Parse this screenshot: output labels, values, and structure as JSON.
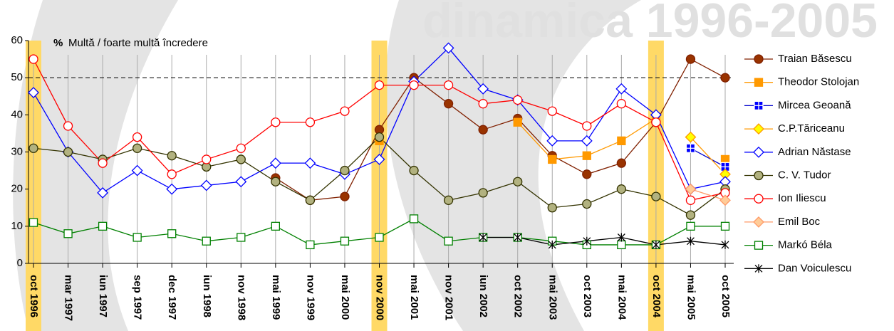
{
  "chart_data": {
    "type": "line",
    "title": "Multă / foarte multă încredere",
    "y_unit": "%",
    "watermark": "dinamica 1996-2005",
    "categories": [
      "oct 1996",
      "mar 1997",
      "iun 1997",
      "sep 1997",
      "dec 1997",
      "iun 1998",
      "nov 1998",
      "mai 1999",
      "nov 1999",
      "mai 2000",
      "nov 2000",
      "mai 2001",
      "nov 2001",
      "iun 2002",
      "oct 2002",
      "mai 2003",
      "oct 2003",
      "mai 2004",
      "oct 2004",
      "mai 2005",
      "oct 2005"
    ],
    "highlight_indices": [
      0,
      10,
      18
    ],
    "reference_line": 50,
    "ylim": [
      0,
      60
    ],
    "yticks": [
      0,
      10,
      20,
      30,
      40,
      50,
      60
    ],
    "legend": "right",
    "series": [
      {
        "name": "Traian Băsescu",
        "color": "#802000",
        "marker": "circle",
        "marker_fill": "#993300",
        "values": [
          null,
          null,
          null,
          null,
          null,
          null,
          null,
          23,
          17,
          18,
          36,
          50,
          43,
          36,
          39,
          29,
          24,
          27,
          38,
          55,
          50
        ]
      },
      {
        "name": "Theodor Stolojan",
        "color": "#FF9900",
        "marker": "square",
        "marker_fill": "#FF9900",
        "values": [
          null,
          null,
          null,
          null,
          null,
          null,
          null,
          null,
          null,
          null,
          33,
          null,
          null,
          null,
          38,
          28,
          29,
          33,
          39,
          null,
          28
        ]
      },
      {
        "name": "Mircea Geoană",
        "color": "#0000CC",
        "marker": "squarecross",
        "marker_fill": "#0000FF",
        "values": [
          null,
          null,
          null,
          null,
          null,
          null,
          null,
          null,
          null,
          null,
          null,
          null,
          null,
          null,
          null,
          null,
          null,
          null,
          null,
          31,
          26
        ]
      },
      {
        "name": "C.P.Tăriceanu",
        "color": "#FF9900",
        "marker": "diamond",
        "marker_fill": "#FFFF00",
        "values": [
          null,
          null,
          null,
          null,
          null,
          null,
          null,
          null,
          null,
          null,
          null,
          null,
          null,
          null,
          null,
          null,
          null,
          null,
          null,
          34,
          24
        ]
      },
      {
        "name": "Adrian Năstase",
        "color": "#0000FF",
        "marker": "diamond",
        "marker_fill": "#FFFFFF",
        "values": [
          46,
          30,
          19,
          25,
          20,
          21,
          22,
          27,
          27,
          24,
          28,
          49,
          58,
          47,
          44,
          33,
          33,
          47,
          40,
          20,
          22
        ]
      },
      {
        "name": "C. V. Tudor",
        "color": "#333300",
        "marker": "circle",
        "marker_fill": "#B2B280",
        "values": [
          31,
          30,
          28,
          31,
          29,
          26,
          28,
          22,
          17,
          25,
          34,
          25,
          17,
          19,
          22,
          15,
          16,
          20,
          18,
          13,
          20
        ]
      },
      {
        "name": "Ion Iliescu",
        "color": "#FF0000",
        "marker": "circle",
        "marker_fill": "#FFFFFF",
        "values": [
          55,
          37,
          27,
          34,
          24,
          28,
          31,
          38,
          38,
          41,
          48,
          48,
          48,
          43,
          44,
          41,
          37,
          43,
          38,
          17,
          19
        ]
      },
      {
        "name": "Emil Boc",
        "color": "#FF9966",
        "marker": "diamond",
        "marker_fill": "#FFCC99",
        "values": [
          null,
          null,
          null,
          null,
          null,
          null,
          null,
          null,
          null,
          null,
          null,
          null,
          null,
          null,
          null,
          null,
          null,
          null,
          null,
          20,
          17
        ]
      },
      {
        "name": "Markó Béla",
        "color": "#008000",
        "marker": "square",
        "marker_fill": "#FFFFFF",
        "values": [
          11,
          8,
          10,
          7,
          8,
          6,
          7,
          10,
          5,
          6,
          7,
          12,
          6,
          7,
          7,
          6,
          5,
          5,
          5,
          10,
          10
        ]
      },
      {
        "name": "Dan Voiculescu",
        "color": "#000000",
        "marker": "asterisk",
        "marker_fill": "#000000",
        "values": [
          null,
          null,
          null,
          null,
          null,
          null,
          null,
          null,
          null,
          null,
          null,
          null,
          null,
          7,
          7,
          5,
          6,
          7,
          5,
          6,
          5
        ]
      }
    ]
  }
}
